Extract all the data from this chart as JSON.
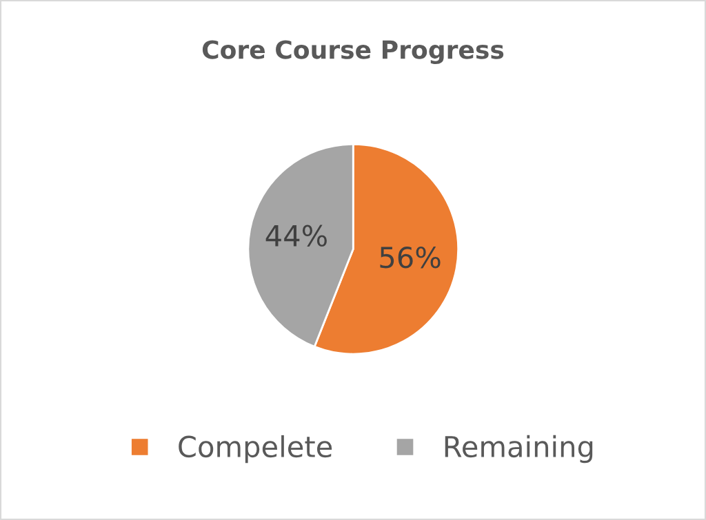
{
  "chart_data": {
    "type": "pie",
    "title": "Core Course Progress",
    "categories": [
      "Compelete",
      "Remaining"
    ],
    "values": [
      56,
      44
    ],
    "colors": [
      "#ed7d31",
      "#a5a5a5"
    ],
    "value_labels": [
      "56%",
      "44%"
    ],
    "legend": "bottom"
  }
}
